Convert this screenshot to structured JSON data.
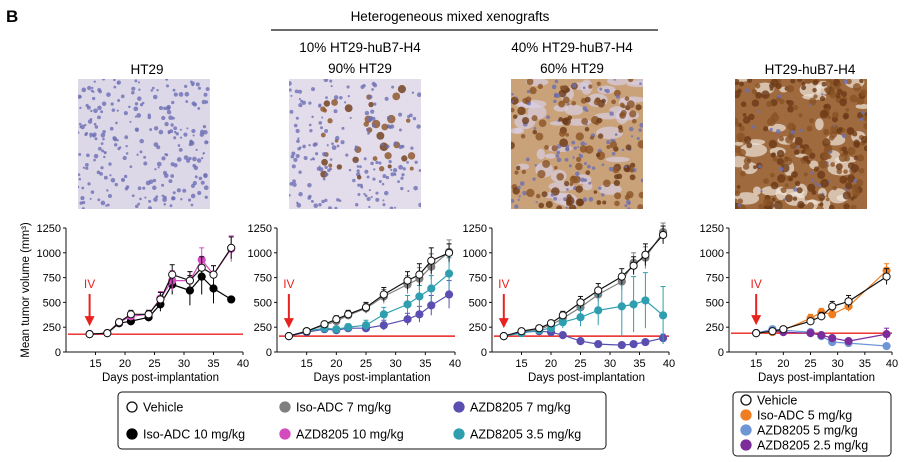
{
  "panel_label": "B",
  "group_header": "Heterogeneous mixed xenografts",
  "columns": [
    {
      "title_lines": [
        "HT29"
      ],
      "stain": "low"
    },
    {
      "title_lines": [
        "10% HT29-huB7-H4",
        "90% HT29"
      ],
      "stain": "mixed-low"
    },
    {
      "title_lines": [
        "40% HT29-huB7-H4",
        "60% HT29"
      ],
      "stain": "mixed-high"
    },
    {
      "title_lines": [
        "HT29-huB7-H4"
      ],
      "stain": "high"
    }
  ],
  "ylabel": "Mean tumor volume (mm³)",
  "xlabel": "Days post-implantation",
  "dose_marker": "IV",
  "colors": {
    "red_line": "#e8231f",
    "arrow": "#e8231f",
    "vehicle": "#ffffff",
    "iso": "#000000",
    "iso7": "#7f7f7f",
    "azd10": "#d44bbf",
    "azd7": "#5a4fb0",
    "azd35": "#2f9fb0",
    "iso5": "#ef7d22",
    "azd5": "#6e96d6",
    "azd25": "#7b2d9a"
  },
  "legend_main": [
    {
      "label": "Vehicle",
      "color": "#ffffff"
    },
    {
      "label": "Iso-ADC 10 mg/kg",
      "color": "#000000"
    },
    {
      "label": "Iso-ADC 7 mg/kg",
      "color": "#7f7f7f"
    },
    {
      "label": "AZD8205 10 mg/kg",
      "color": "#d44bbf"
    },
    {
      "label": "AZD8205 7 mg/kg",
      "color": "#5a4fb0"
    },
    {
      "label": "AZD8205 3.5 mg/kg",
      "color": "#2f9fb0"
    }
  ],
  "legend_right": [
    {
      "label": "Vehicle",
      "color": "#ffffff"
    },
    {
      "label": "Iso-ADC 5 mg/kg",
      "color": "#ef7d22"
    },
    {
      "label": "AZD8205 5 mg/kg",
      "color": "#6e96d6"
    },
    {
      "label": "AZD8205 2.5 mg/kg",
      "color": "#7b2d9a"
    }
  ],
  "chart_data": [
    {
      "type": "line",
      "xlabel": "Days post-implantation",
      "ylabel": "Mean tumor volume (mm³)",
      "xlim": [
        10,
        40
      ],
      "ylim": [
        0,
        1250
      ],
      "xticks": [
        15,
        20,
        25,
        30,
        35,
        40
      ],
      "yticks": [
        0,
        250,
        500,
        750,
        1000,
        1250
      ],
      "dose_day": 14,
      "reference_line": 180,
      "series": [
        {
          "name": "Vehicle",
          "x": [
            14,
            17,
            19,
            21,
            24,
            26,
            28,
            31,
            33,
            35,
            38
          ],
          "y": [
            180,
            190,
            300,
            380,
            380,
            530,
            780,
            720,
            850,
            780,
            1050
          ],
          "err": [
            15,
            15,
            30,
            40,
            40,
            70,
            100,
            90,
            110,
            90,
            110
          ]
        },
        {
          "name": "Iso-ADC 10 mg/kg",
          "x": [
            14,
            17,
            19,
            21,
            24,
            26,
            28,
            31,
            33,
            35,
            38
          ],
          "y": [
            180,
            190,
            290,
            310,
            350,
            480,
            680,
            620,
            760,
            640,
            530
          ],
          "err": [
            15,
            15,
            30,
            40,
            40,
            70,
            100,
            150,
            180,
            150,
            20
          ]
        },
        {
          "name": "AZD8205 10 mg/kg",
          "x": [
            14,
            17,
            19,
            21,
            24,
            26,
            28,
            31,
            33,
            35,
            38
          ],
          "y": [
            180,
            190,
            300,
            360,
            380,
            540,
            720,
            720,
            930,
            780,
            1040
          ],
          "err": [
            15,
            15,
            30,
            40,
            40,
            70,
            100,
            90,
            120,
            90,
            130
          ]
        }
      ]
    },
    {
      "type": "line",
      "xlabel": "Days post-implantation",
      "ylabel": "",
      "xlim": [
        10,
        40
      ],
      "ylim": [
        0,
        1250
      ],
      "xticks": [
        15,
        20,
        25,
        30,
        35,
        40
      ],
      "yticks": [
        0,
        250,
        500,
        750,
        1000,
        1250
      ],
      "dose_day": 12,
      "reference_line": 160,
      "series": [
        {
          "name": "Vehicle",
          "x": [
            12,
            15,
            18,
            20,
            22,
            25,
            28,
            32,
            34,
            36,
            39
          ],
          "y": [
            160,
            210,
            280,
            330,
            380,
            450,
            580,
            720,
            780,
            920,
            1000
          ],
          "err": [
            15,
            20,
            30,
            35,
            40,
            50,
            70,
            90,
            110,
            130,
            90
          ]
        },
        {
          "name": "Iso-ADC 7 mg/kg",
          "x": [
            12,
            15,
            18,
            20,
            22,
            25,
            28,
            32,
            34,
            36,
            39
          ],
          "y": [
            160,
            210,
            270,
            310,
            370,
            440,
            560,
            680,
            740,
            860,
            1010
          ],
          "err": [
            15,
            20,
            30,
            35,
            40,
            50,
            70,
            90,
            110,
            130,
            120
          ]
        },
        {
          "name": "AZD8205 7 mg/kg",
          "x": [
            12,
            15,
            18,
            20,
            22,
            25,
            28,
            32,
            34,
            36,
            39
          ],
          "y": [
            160,
            200,
            230,
            220,
            240,
            240,
            270,
            330,
            380,
            470,
            580
          ],
          "err": [
            15,
            20,
            25,
            30,
            35,
            40,
            50,
            60,
            80,
            100,
            140
          ]
        },
        {
          "name": "AZD8205 3.5 mg/kg",
          "x": [
            12,
            15,
            18,
            20,
            22,
            25,
            28,
            32,
            34,
            36,
            39
          ],
          "y": [
            160,
            210,
            240,
            230,
            250,
            270,
            380,
            480,
            560,
            640,
            790
          ],
          "err": [
            15,
            20,
            25,
            30,
            35,
            50,
            70,
            90,
            110,
            130,
            160
          ]
        }
      ]
    },
    {
      "type": "line",
      "xlabel": "Days post-implantation",
      "ylabel": "",
      "xlim": [
        10,
        40
      ],
      "ylim": [
        0,
        1250
      ],
      "xticks": [
        15,
        20,
        25,
        30,
        35,
        40
      ],
      "yticks": [
        0,
        250,
        500,
        750,
        1000,
        1250
      ],
      "dose_day": 12,
      "reference_line": 160,
      "series": [
        {
          "name": "Vehicle",
          "x": [
            12,
            15,
            18,
            20,
            22,
            25,
            28,
            32,
            34,
            36,
            39
          ],
          "y": [
            160,
            210,
            240,
            290,
            370,
            500,
            620,
            760,
            870,
            980,
            1180
          ],
          "err": [
            15,
            20,
            25,
            30,
            40,
            60,
            70,
            80,
            90,
            110,
            90
          ]
        },
        {
          "name": "Iso-ADC 7 mg/kg",
          "x": [
            12,
            15,
            18,
            20,
            22,
            25,
            28,
            32,
            34,
            36,
            39
          ],
          "y": [
            160,
            200,
            230,
            270,
            340,
            450,
            580,
            710,
            900,
            950,
            1210
          ],
          "err": [
            15,
            20,
            25,
            30,
            40,
            60,
            70,
            80,
            100,
            110,
            90
          ]
        },
        {
          "name": "AZD8205 7 mg/kg",
          "x": [
            12,
            15,
            18,
            20,
            22,
            25,
            28,
            32,
            34,
            36,
            39
          ],
          "y": [
            160,
            200,
            210,
            200,
            170,
            110,
            80,
            70,
            80,
            100,
            140
          ],
          "err": [
            15,
            20,
            20,
            20,
            20,
            20,
            15,
            15,
            15,
            20,
            40
          ]
        },
        {
          "name": "AZD8205 3.5 mg/kg",
          "x": [
            12,
            15,
            18,
            20,
            22,
            25,
            28,
            32,
            34,
            36,
            39
          ],
          "y": [
            160,
            190,
            220,
            240,
            300,
            350,
            420,
            460,
            480,
            520,
            370
          ],
          "err": [
            15,
            20,
            25,
            30,
            60,
            90,
            150,
            300,
            280,
            280,
            290
          ]
        }
      ]
    },
    {
      "type": "line",
      "xlabel": "Days post-implantation",
      "ylabel": "",
      "xlim": [
        10,
        40
      ],
      "ylim": [
        0,
        1250
      ],
      "xticks": [
        15,
        20,
        25,
        30,
        35,
        40
      ],
      "yticks": [
        0,
        250,
        500,
        750,
        1000,
        1250
      ],
      "dose_day": 15,
      "reference_line": 190,
      "series": [
        {
          "name": "Vehicle",
          "x": [
            15,
            18,
            20,
            25,
            27,
            29,
            32,
            39
          ],
          "y": [
            190,
            210,
            230,
            310,
            360,
            460,
            510,
            760
          ],
          "err": [
            15,
            15,
            20,
            30,
            40,
            50,
            60,
            80
          ]
        },
        {
          "name": "Iso-ADC 5 mg/kg",
          "x": [
            15,
            18,
            20,
            25,
            27,
            29,
            32,
            39
          ],
          "y": [
            190,
            200,
            220,
            340,
            400,
            380,
            460,
            820
          ],
          "err": [
            15,
            15,
            20,
            40,
            40,
            40,
            50,
            70
          ]
        },
        {
          "name": "AZD8205 5 mg/kg",
          "x": [
            15,
            18,
            20,
            25,
            27,
            29,
            32,
            39
          ],
          "y": [
            190,
            230,
            220,
            200,
            160,
            100,
            90,
            60
          ],
          "err": [
            15,
            20,
            20,
            20,
            20,
            15,
            15,
            10
          ]
        },
        {
          "name": "AZD8205 2.5 mg/kg",
          "x": [
            15,
            18,
            20,
            25,
            27,
            29,
            32,
            39
          ],
          "y": [
            190,
            210,
            200,
            190,
            170,
            140,
            110,
            180
          ],
          "err": [
            15,
            20,
            20,
            20,
            20,
            20,
            20,
            60
          ]
        }
      ]
    }
  ]
}
